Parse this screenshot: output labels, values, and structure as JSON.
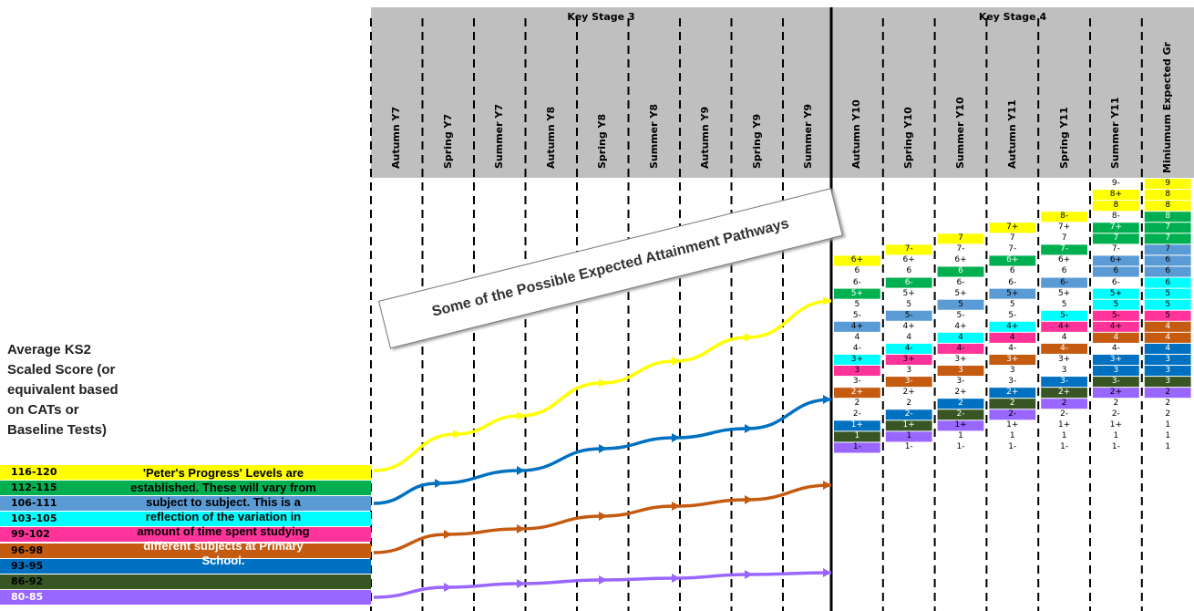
{
  "key_stage_3": "Key Stage 3",
  "key_stage_4": "Key Stage 4",
  "columns": [
    "Autumn Y7",
    "Spring Y7",
    "Summer Y7",
    "Autumn Y8",
    "Spring Y8",
    "Summer Y8",
    "Autumn Y9",
    "Spring Y9",
    "Summer Y9",
    "Autumn Y10",
    "Spring Y10",
    "Summer Y10",
    "Autumn Y11",
    "Spring Y11",
    "Summer Y11",
    "Miniumum Expected Gr"
  ],
  "left_heading_lines": [
    "Average KS2",
    "Scaled Score (or",
    "equivalent based",
    "on CATs or",
    "Baseline Tests)"
  ],
  "bands": [
    {
      "range": "116-120",
      "color": "#ffff00"
    },
    {
      "range": "112-115",
      "color": "#00b050"
    },
    {
      "range": "106-111",
      "color": "#5b9bd5"
    },
    {
      "range": "103-105",
      "color": "#00ffff"
    },
    {
      "range": "99-102",
      "color": "#ff3399"
    },
    {
      "range": "96-98",
      "color": "#c55a11"
    },
    {
      "range": "93-95",
      "color": "#0070c0"
    },
    {
      "range": "86-92",
      "color": "#375623"
    },
    {
      "range": "80-85",
      "color": "#9966ff"
    }
  ],
  "note_lines": [
    "'Peter's Progress' Levels are",
    "established.  These will vary from",
    "subject to subject.  This is a",
    "reflection of the variation in",
    "amount of time spent studying",
    "different subjects at Primary",
    "School."
  ],
  "callout_text": "Some of the Possible Expected Attainment Pathways",
  "grade_rows": [
    "9-",
    "8+",
    "8",
    "8-",
    "7+",
    "7",
    "7-",
    "6+",
    "6",
    "6-",
    "5+",
    "5",
    "5-",
    "4+",
    "4",
    "4-",
    "3+",
    "3",
    "3-",
    "2+",
    "2",
    "2-",
    "1+",
    "1",
    "1-"
  ],
  "colors": {
    "yellow": "#ffff00",
    "green": "#00b050",
    "lightblue": "#5b9bd5",
    "cyan": "#00ffff",
    "pink": "#ff3399",
    "orange": "#c55a11",
    "blue": "#0070c0",
    "darkgreen": "#375623",
    "purple": "#9966ff",
    "header_grey": "#bfbfbf"
  },
  "grid": {
    "Autumn Y10": {
      "start": 7,
      "colored": {
        "6+": "yellow",
        "5+": "green",
        "4+": "lightblue",
        "3+": "cyan",
        "3": "pink",
        "2+": "orange",
        "1+": "blue",
        "1": "darkgreen",
        "1-": "purple"
      }
    },
    "Spring Y10": {
      "start": 6,
      "colored": {
        "7-": "yellow",
        "6-": "green",
        "5-": "lightblue",
        "4-": "cyan",
        "3+": "pink",
        "3-": "orange",
        "2-": "blue",
        "1+": "darkgreen",
        "1": "purple"
      }
    },
    "Summer Y10": {
      "start": 5,
      "colored": {
        "7": "yellow",
        "6": "green",
        "5": "lightblue",
        "4": "cyan",
        "4-": "pink",
        "3": "orange",
        "2": "blue",
        "2-": "darkgreen",
        "1+": "purple"
      }
    },
    "Autumn Y11": {
      "start": 4,
      "colored": {
        "7+": "yellow",
        "6+": "green",
        "5+": "lightblue",
        "4+": "cyan",
        "4": "pink",
        "3+": "orange",
        "2+": "blue",
        "2": "darkgreen",
        "2-": "purple"
      }
    },
    "Spring Y11": {
      "start": 3,
      "colored": {
        "8-": "yellow",
        "7-": "green",
        "6-": "lightblue",
        "5-": "cyan",
        "4+": "pink",
        "4-": "orange",
        "3-": "blue",
        "2+": "darkgreen",
        "2": "purple"
      }
    },
    "Summer Y11": {
      "start": 0,
      "colored": {
        "8+": "yellow",
        "8": "yellow",
        "7+": "green",
        "7": "green",
        "6+": "lightblue",
        "6": "lightblue",
        "5+": "cyan",
        "5": "cyan",
        "5-": "pink",
        "4+": "pink",
        "4": "orange",
        "3+": "blue",
        "3": "blue",
        "3-": "darkgreen",
        "2+": "purple"
      }
    },
    "Miniumum Expected Gr": {
      "labels": [
        "9",
        "8",
        "8",
        "8",
        "7",
        "7",
        "7",
        "6",
        "6",
        "6",
        "5",
        "5",
        "5",
        "4",
        "4",
        "4",
        "3",
        "3",
        "3",
        "2",
        "2",
        "2",
        "1",
        "1",
        "1"
      ],
      "fills": [
        "yellow",
        "yellow",
        "yellow",
        "green",
        "green",
        "green",
        "lightblue",
        "lightblue",
        "lightblue",
        "cyan",
        "cyan",
        "cyan",
        "pink",
        "orange",
        "orange",
        "blue",
        "blue",
        "blue",
        "darkgreen",
        "purple",
        "",
        "",
        "",
        "",
        ""
      ]
    }
  },
  "pathway_colors": [
    "yellow",
    "blue",
    "orange",
    "purple"
  ]
}
